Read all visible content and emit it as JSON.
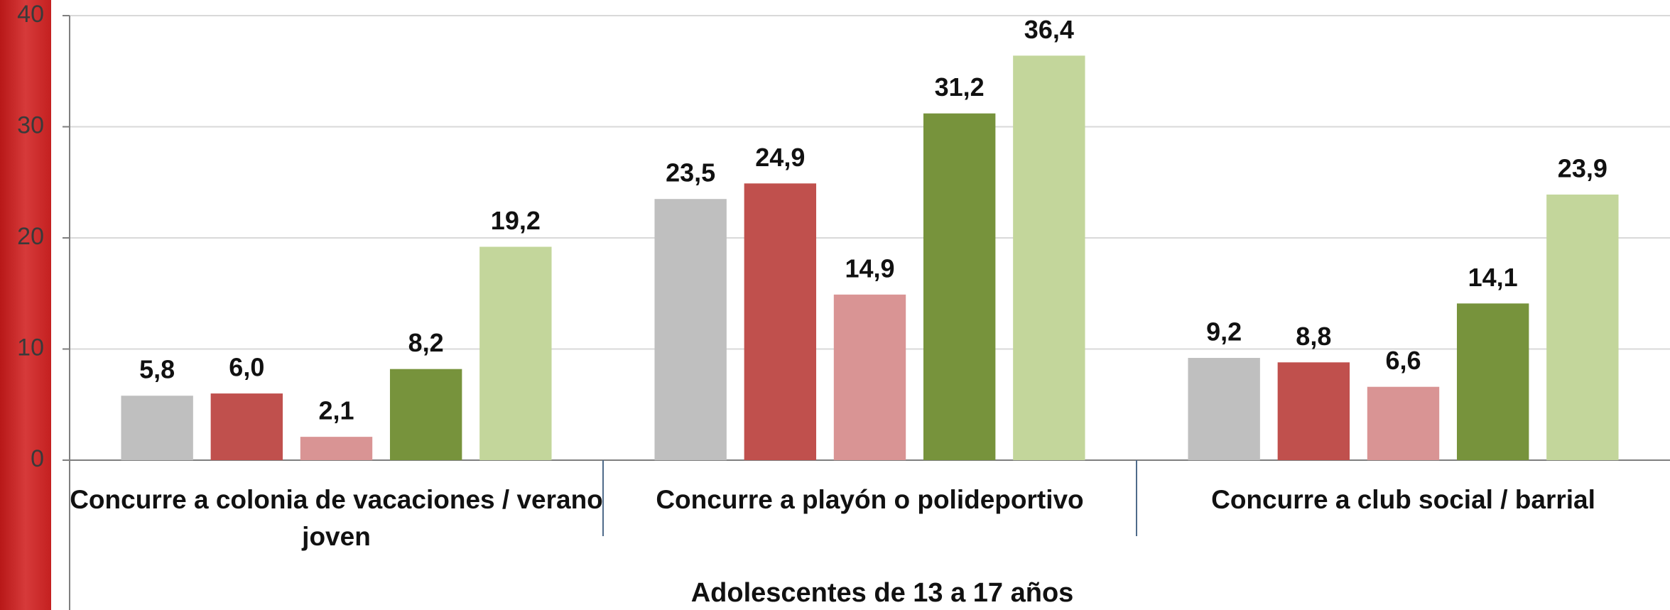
{
  "chart_data": {
    "type": "bar",
    "x_label": "Adolescentes de 13 a 17 años",
    "categories": [
      "Concurre a colonia de vacaciones / verano joven",
      "Concurre a playón o polideportivo",
      "Concurre a club social / barrial"
    ],
    "series": [
      {
        "color": "#bfbfbf",
        "values": [
          5.8,
          23.5,
          9.2
        ],
        "value_labels": [
          "5,8",
          "23,5",
          "9,2"
        ]
      },
      {
        "color": "#c0504d",
        "values": [
          6.0,
          24.9,
          8.8
        ],
        "value_labels": [
          "6,0",
          "24,9",
          "8,8"
        ]
      },
      {
        "color": "#d99494",
        "values": [
          2.1,
          14.9,
          6.6
        ],
        "value_labels": [
          "2,1",
          "14,9",
          "6,6"
        ]
      },
      {
        "color": "#77933c",
        "values": [
          8.2,
          31.2,
          14.1
        ],
        "value_labels": [
          "8,2",
          "31,2",
          "14,1"
        ]
      },
      {
        "color": "#c3d69b",
        "values": [
          19.2,
          36.4,
          23.9
        ],
        "value_labels": [
          "19,2",
          "36,4",
          "23,9"
        ]
      }
    ],
    "ylim": [
      0,
      40
    ],
    "yticks": [
      0,
      10,
      20,
      30,
      40
    ],
    "grid": true
  }
}
